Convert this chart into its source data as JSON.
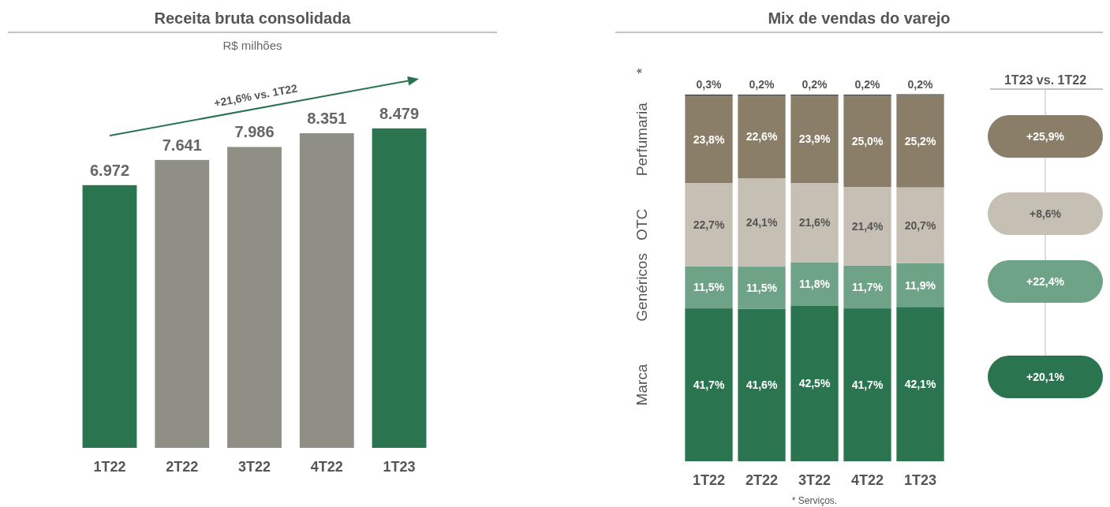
{
  "chart_data": [
    {
      "type": "bar",
      "title": "Receita bruta consolidada",
      "subtitle": "R$ milhões",
      "categories": [
        "1T22",
        "2T22",
        "3T22",
        "4T22",
        "1T23"
      ],
      "values": [
        6972,
        7641,
        7986,
        8351,
        8479
      ],
      "value_labels": [
        "6.972",
        "7.641",
        "7.986",
        "8.351",
        "8.479"
      ],
      "colors": [
        "#2a7550",
        "#908f85",
        "#908f85",
        "#908f85",
        "#2a7550"
      ],
      "tick_labels": "x",
      "annotations": [
        "+21,6% vs. 1T22"
      ]
    },
    {
      "type": "bar",
      "title": "Mix de vendas do varejo",
      "stacked": true,
      "categories": [
        "1T22",
        "2T22",
        "3T22",
        "4T22",
        "1T23"
      ],
      "ylim": [
        0,
        100
      ],
      "tick_labels": "x",
      "series": [
        {
          "name": "Marca",
          "color": "#2a7550",
          "values": [
            41.7,
            41.6,
            42.5,
            41.7,
            42.1
          ],
          "value_labels": [
            "41,7%",
            "41,6%",
            "42,5%",
            "41,7%",
            "42,1%"
          ]
        },
        {
          "name": "Genéricos",
          "color": "#6fa387",
          "values": [
            11.5,
            11.5,
            11.8,
            11.7,
            11.9
          ],
          "value_labels": [
            "11,5%",
            "11,5%",
            "11,8%",
            "11,7%",
            "11,9%"
          ]
        },
        {
          "name": "OTC",
          "color": "#c6c0b4",
          "values": [
            22.7,
            24.1,
            21.6,
            21.4,
            20.7
          ],
          "value_labels": [
            "22,7%",
            "24,1%",
            "21,6%",
            "21,4%",
            "20,7%"
          ]
        },
        {
          "name": "Perfumaria",
          "color": "#8a7e69",
          "values": [
            23.8,
            22.6,
            23.9,
            25.0,
            25.2
          ],
          "value_labels": [
            "23,8%",
            "22,6%",
            "23,9%",
            "25,0%",
            "25,2%"
          ]
        },
        {
          "name": "*",
          "color": "#333333",
          "values": [
            0.3,
            0.2,
            0.2,
            0.2,
            0.2
          ],
          "value_labels": [
            "0,3%",
            "0,2%",
            "0,2%",
            "0,2%",
            "0,2%"
          ]
        }
      ],
      "annotations": [
        "1T23 vs. 1T22",
        "+20,1%",
        "+22,4%",
        "+8,6%",
        "+25,9%",
        "* Serviços."
      ]
    }
  ]
}
